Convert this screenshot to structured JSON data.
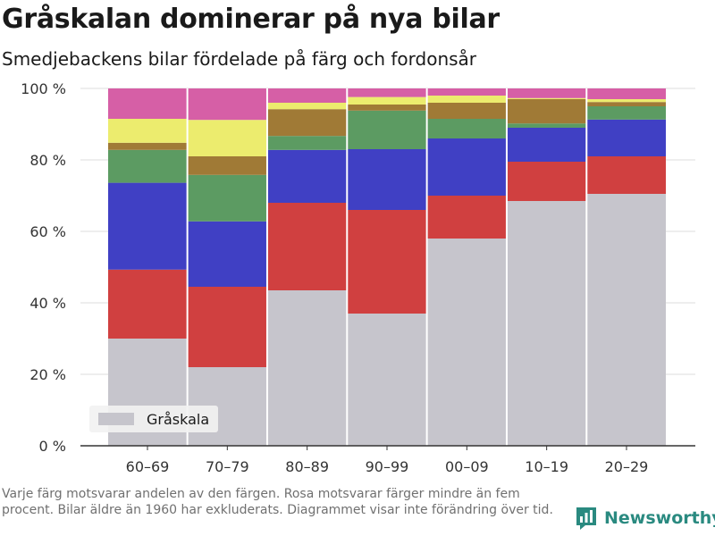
{
  "header": {
    "title": "Gråskalan dominerar på nya bilar",
    "subtitle": "Smedjebackens bilar fördelade på färg och fordonsår"
  },
  "footnote": "Varje färg motsvarar andelen av den färgen. Rosa motsvarar färger mindre än fem procent. Bilar äldre än 1960 har exkluderats. Diagrammet visar inte förändring över tid.",
  "brand": {
    "name": "Newsworthy",
    "icon": "bar-chart-logo-icon",
    "color": "#2a8a80"
  },
  "legend": {
    "label": "Gråskala",
    "position": "bottom-left"
  },
  "chart_data": {
    "type": "bar",
    "stacked": true,
    "categories": [
      "60–69",
      "70–79",
      "80–89",
      "90–99",
      "00–09",
      "10–19",
      "20–29"
    ],
    "ylim": [
      0,
      100
    ],
    "yticks": [
      0,
      20,
      40,
      60,
      80,
      100
    ],
    "ytick_labels": [
      "0 %",
      "20 %",
      "40 %",
      "60 %",
      "80 %",
      "100 %"
    ],
    "grid": true,
    "series": [
      {
        "color": "#c6c5cc",
        "values": [
          30,
          22,
          43.5,
          37,
          58,
          68.5,
          70.5
        ],
        "name": "Gråskala"
      },
      {
        "color": "#d04040",
        "values": [
          19.3,
          22.5,
          24.5,
          29,
          12,
          11,
          10.5
        ]
      },
      {
        "color": "#4040c4",
        "values": [
          24.3,
          18.3,
          14.8,
          17,
          16,
          9.5,
          10.3
        ]
      },
      {
        "color": "#5c9b62",
        "values": [
          9.2,
          13,
          3.9,
          10.8,
          5.5,
          1.2,
          3.7
        ]
      },
      {
        "color": "#a07a36",
        "values": [
          2,
          5.2,
          7.5,
          1.7,
          4.5,
          6.8,
          1.2
        ]
      },
      {
        "color": "#ecec6e",
        "values": [
          6.7,
          10.2,
          1.8,
          2.1,
          2,
          0.3,
          0.8
        ]
      },
      {
        "color": "#d65fa6",
        "values": [
          8.5,
          8.8,
          4,
          2.4,
          2,
          2.7,
          3
        ]
      }
    ]
  }
}
